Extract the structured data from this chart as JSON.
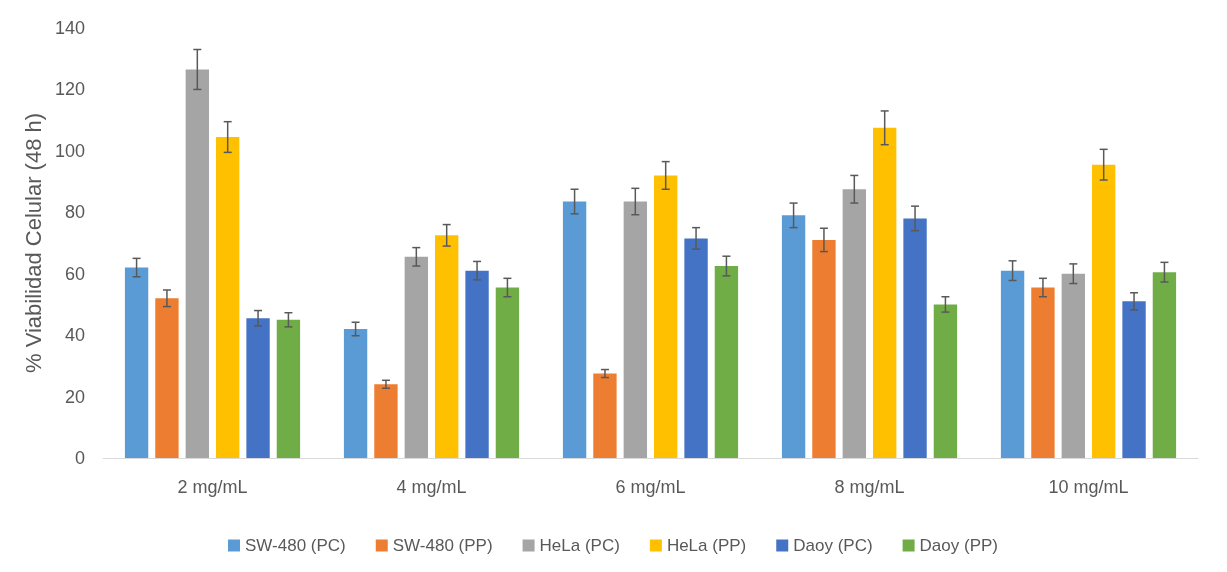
{
  "chart_data": {
    "type": "bar",
    "ylabel": "% Viabilidad Celular (48 h)",
    "categories": [
      "2 mg/mL",
      "4 mg/mL",
      "6 mg/mL",
      "8 mg/mL",
      "10 mg/mL"
    ],
    "ylim": [
      0,
      140
    ],
    "yticks": [
      0,
      20,
      40,
      60,
      80,
      100,
      120,
      140
    ],
    "grid": false,
    "legend": "bottom",
    "series": [
      {
        "name": "SW-480 (PC)",
        "color": "#5b9bd5",
        "values": [
          62,
          42,
          83.5,
          79,
          61
        ],
        "errors": [
          3,
          2.2,
          4,
          4,
          3.2
        ]
      },
      {
        "name": "SW-480 (PP)",
        "color": "#ed7d31",
        "values": [
          52,
          24,
          27.5,
          71,
          55.5
        ],
        "errors": [
          2.7,
          1.3,
          1.3,
          3.8,
          3
        ]
      },
      {
        "name": "HeLa (PC)",
        "color": "#a5a5a5",
        "values": [
          126.5,
          65.5,
          83.5,
          87.5,
          60
        ],
        "errors": [
          6.5,
          3,
          4.3,
          4.5,
          3.2
        ]
      },
      {
        "name": "HeLa (PP)",
        "color": "#ffc000",
        "values": [
          104.5,
          72.5,
          92,
          107.5,
          95.5
        ],
        "errors": [
          5,
          3.5,
          4.5,
          5.5,
          5
        ]
      },
      {
        "name": "Daoy (PC)",
        "color": "#4472c4",
        "values": [
          45.5,
          61,
          71.5,
          78,
          51
        ],
        "errors": [
          2.5,
          3,
          3.5,
          4,
          2.8
        ]
      },
      {
        "name": "Daoy (PP)",
        "color": "#70ad47",
        "values": [
          45,
          55.5,
          62.5,
          50,
          60.5
        ],
        "errors": [
          2.3,
          3,
          3.2,
          2.5,
          3.2
        ]
      }
    ]
  }
}
